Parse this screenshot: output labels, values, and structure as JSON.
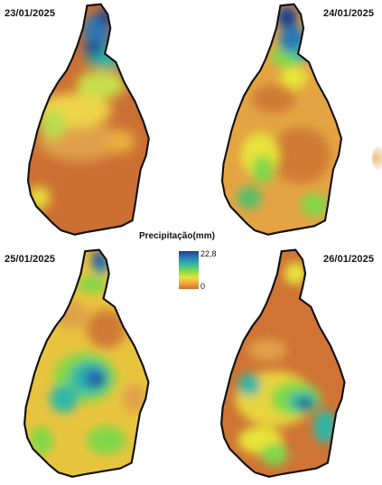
{
  "panels": [
    {
      "date": "23/01/2025"
    },
    {
      "date": "24/01/2025"
    },
    {
      "date": "25/01/2025"
    },
    {
      "date": "26/01/2025"
    }
  ],
  "legend": {
    "title": "Precipitação(mm)",
    "max_label": "22,8",
    "min_label": "0",
    "colors": [
      "#1b3f8f",
      "#2a78b8",
      "#2fb7a6",
      "#7fd84a",
      "#e8e43a",
      "#f0a640",
      "#cf6e2c"
    ]
  }
}
